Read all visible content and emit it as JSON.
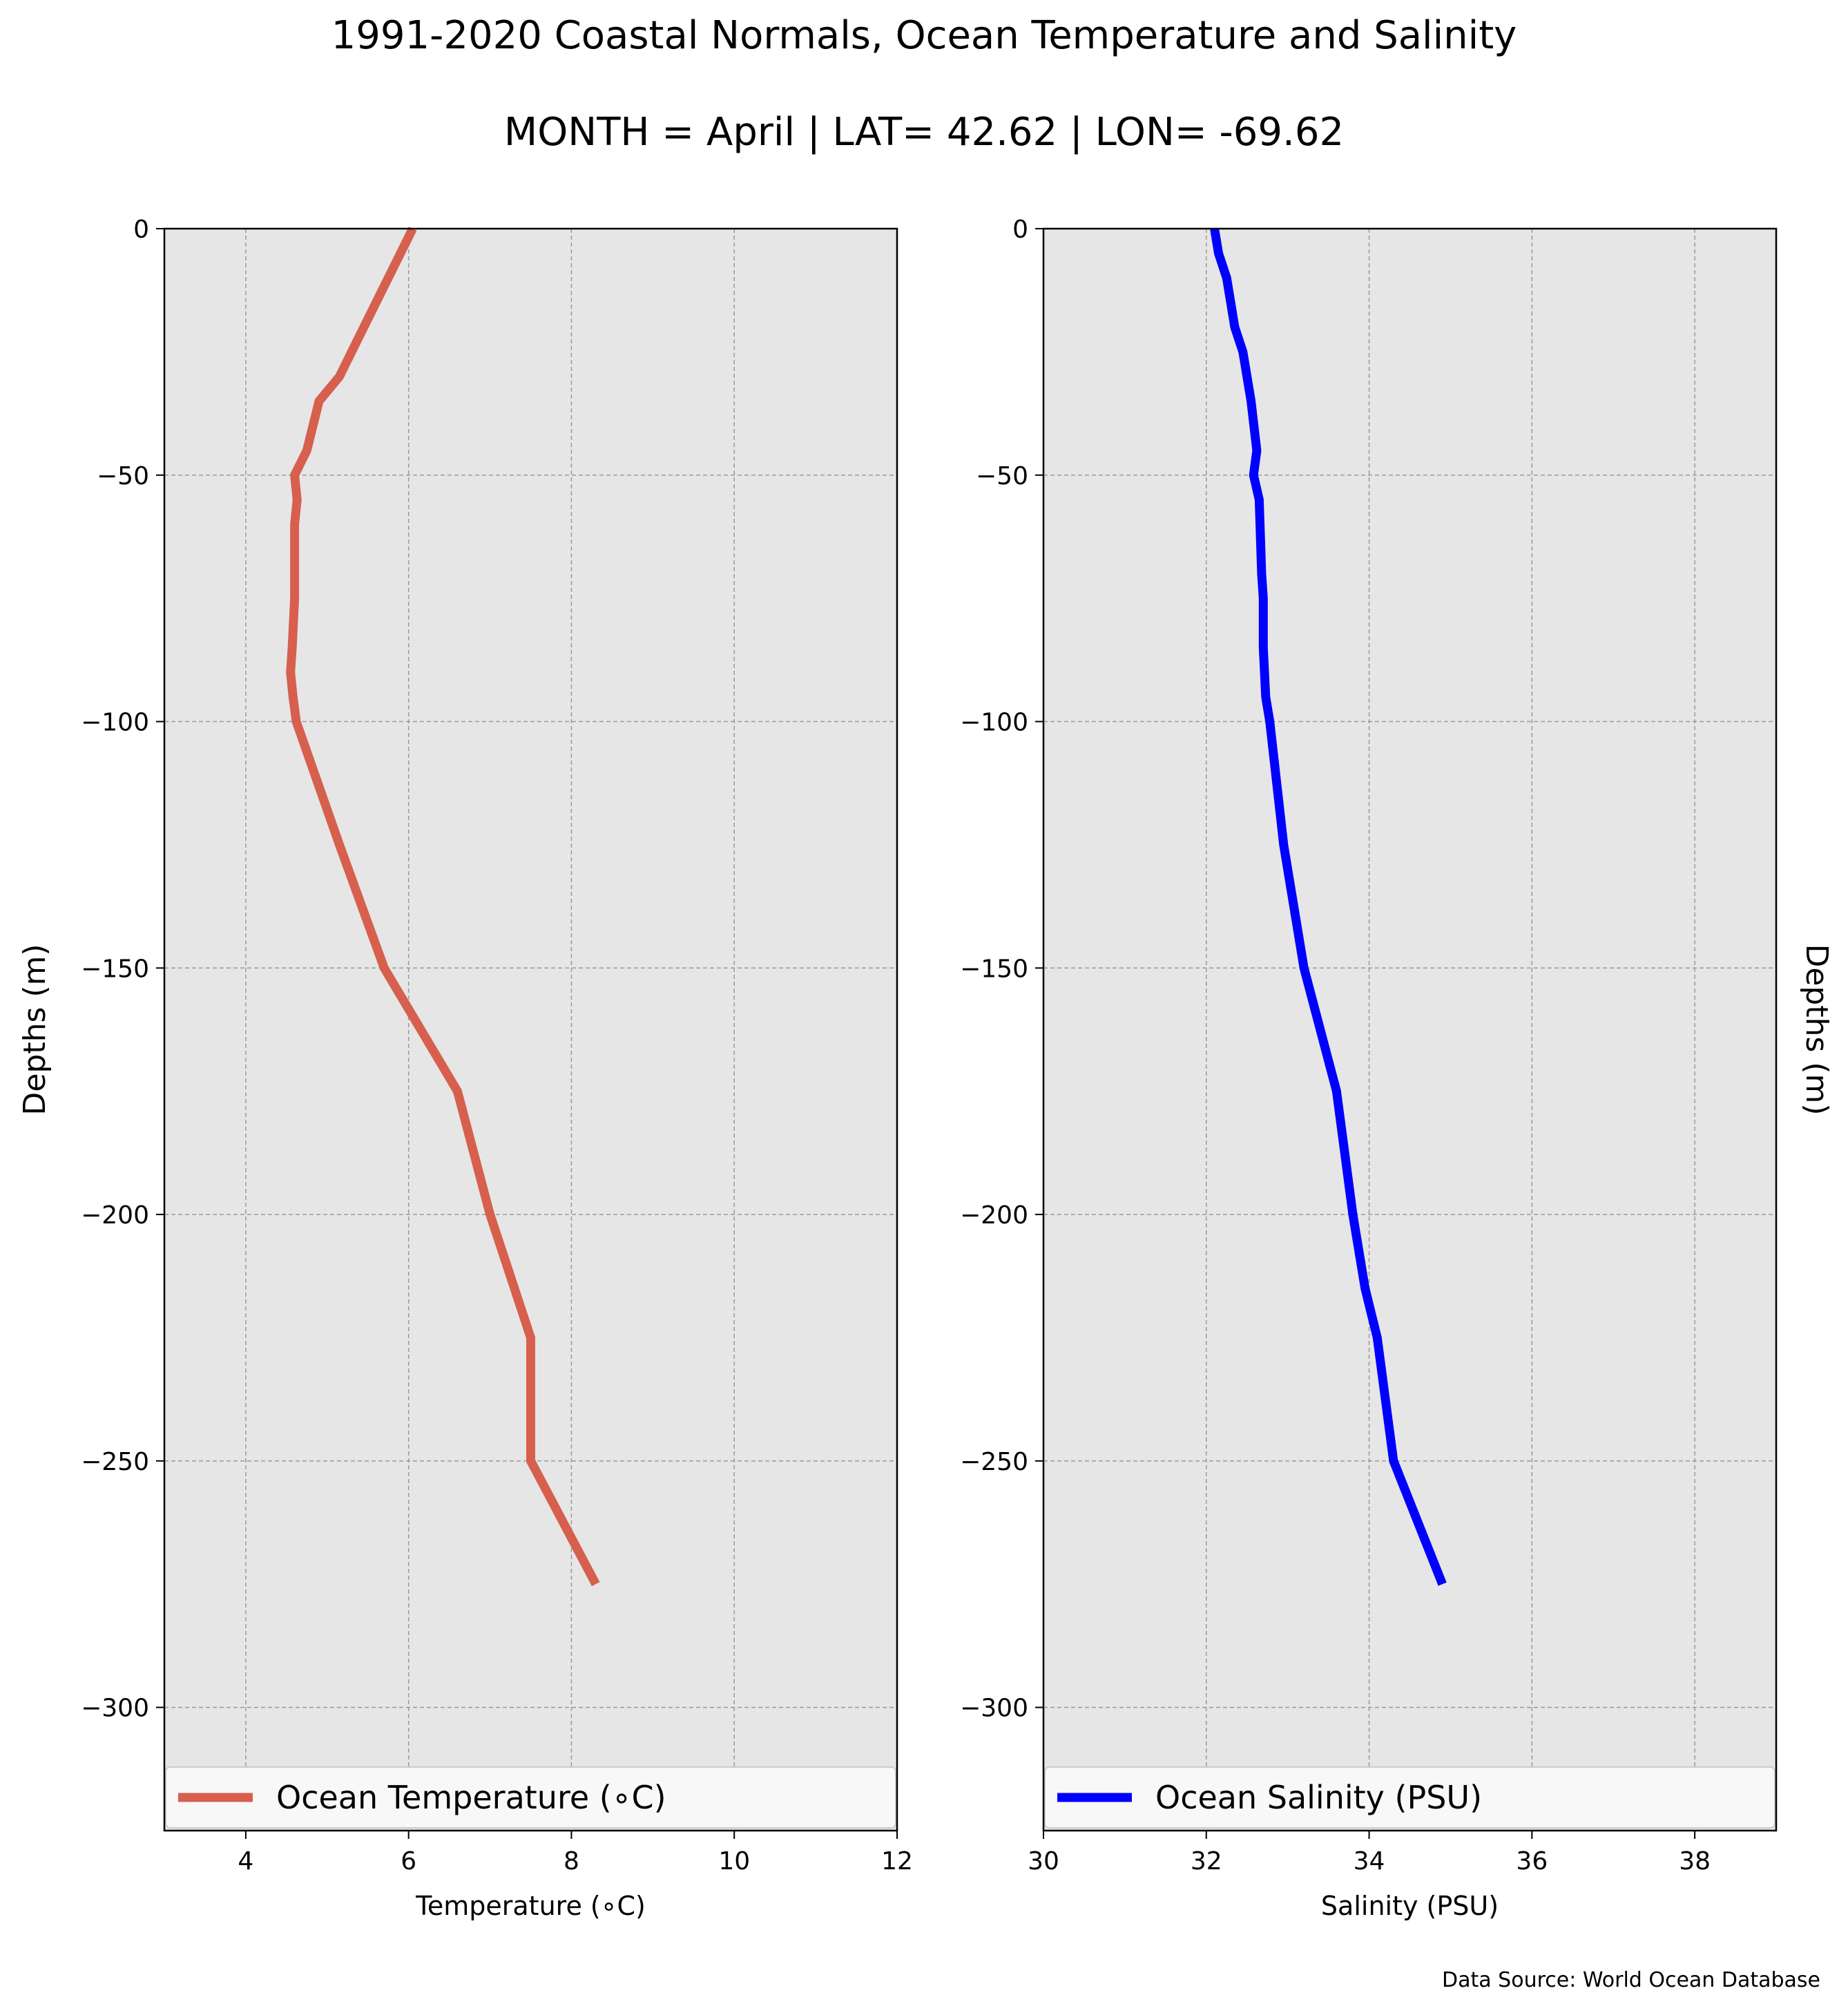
{
  "title": "1991-2020 Coastal Normals, Ocean Temperature and Salinity",
  "subtitle": "MONTH = April | LAT= 42.62 | LON= -69.62",
  "source_note": "Data Source: World Ocean Database",
  "colors": {
    "background": "#ffffff",
    "plot_bg": "#e6e6e6",
    "grid": "#999999",
    "temperature": "#d6604d",
    "salinity": "#0000ff",
    "legend_bg": "#f8f8f8"
  },
  "chart_data": [
    {
      "type": "line",
      "xlabel": "Temperature (∘C)",
      "ylabel": "Depths (m)",
      "xlim": [
        3,
        12
      ],
      "ylim": [
        -325,
        0
      ],
      "xticks": [
        4,
        6,
        8,
        10,
        12
      ],
      "yticks": [
        0,
        -50,
        -100,
        -150,
        -200,
        -250,
        -300
      ],
      "ytick_labels": [
        "0",
        "−50",
        "−100",
        "−150",
        "−200",
        "−250",
        "−300"
      ],
      "grid": true,
      "legend_position": "bottom",
      "series": [
        {
          "name": "Ocean Temperature (∘C)",
          "color": "#d6604d",
          "x": [
            6.05,
            5.9,
            5.6,
            5.3,
            5.15,
            4.9,
            4.75,
            4.6,
            4.63,
            4.6,
            4.6,
            4.57,
            4.55,
            4.58,
            4.62,
            5.15,
            5.7,
            6.6,
            7.0,
            7.5,
            7.5,
            8.3
          ],
          "y": [
            0,
            -5,
            -15,
            -25,
            -30,
            -35,
            -45,
            -50,
            -55,
            -60,
            -75,
            -85,
            -90,
            -95,
            -100,
            -125,
            -150,
            -175,
            -200,
            -225,
            -250,
            -275
          ]
        }
      ]
    },
    {
      "type": "line",
      "xlabel": "Salinity (PSU)",
      "ylabel": "Depths (m)",
      "xlim": [
        30,
        39
      ],
      "ylim": [
        -325,
        0
      ],
      "xticks": [
        30,
        32,
        34,
        36,
        38
      ],
      "yticks": [
        0,
        -50,
        -100,
        -150,
        -200,
        -250,
        -300
      ],
      "ytick_labels": [
        "0",
        "−50",
        "−100",
        "−150",
        "−200",
        "−250",
        "−300"
      ],
      "grid": true,
      "legend_position": "bottom",
      "series": [
        {
          "name": "Ocean Salinity (PSU)",
          "color": "#0000ff",
          "x": [
            32.1,
            32.15,
            32.25,
            32.35,
            32.45,
            32.55,
            32.62,
            32.58,
            32.65,
            32.68,
            32.7,
            32.7,
            32.73,
            32.78,
            32.95,
            33.2,
            33.6,
            33.8,
            33.95,
            34.1,
            34.3,
            34.9
          ],
          "y": [
            0,
            -5,
            -10,
            -20,
            -25,
            -35,
            -45,
            -50,
            -55,
            -70,
            -75,
            -85,
            -95,
            -100,
            -125,
            -150,
            -175,
            -200,
            -215,
            -225,
            -250,
            -275
          ]
        }
      ]
    }
  ]
}
